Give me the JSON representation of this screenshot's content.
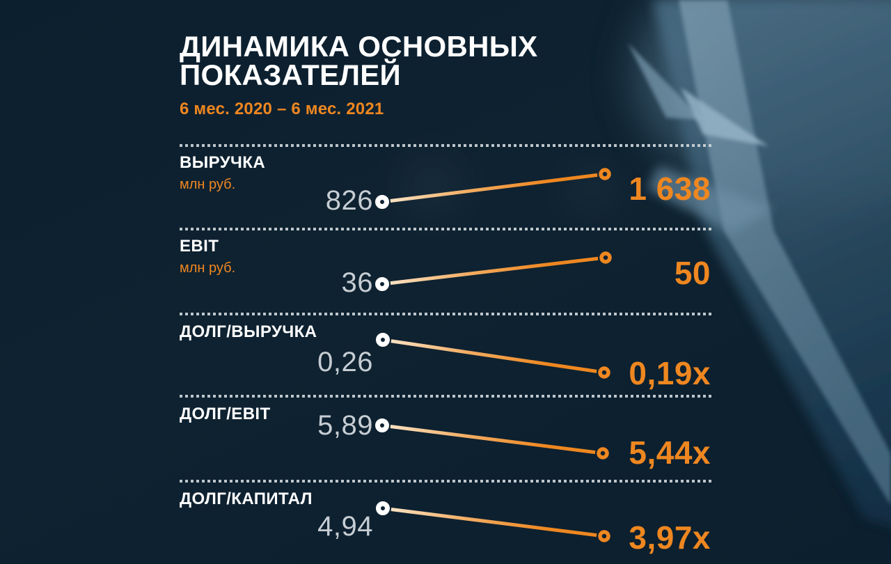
{
  "header": {
    "title": "ДИНАМИКА ОСНОВНЫХ ПОКАЗАТЕЛЕЙ",
    "subtitle": "6 мес. 2020 – 6 мес. 2021"
  },
  "metrics": [
    {
      "label": "ВЫРУЧКА",
      "unit": "млн руб.",
      "start_value": "826",
      "end_value": "1 638",
      "trend": "up"
    },
    {
      "label": "EBIT",
      "unit": "млн руб.",
      "start_value": "36",
      "end_value": "50",
      "trend": "up"
    },
    {
      "label": "ДОЛГ/ВЫРУЧКА",
      "unit": "",
      "start_value": "0,26",
      "end_value": "0,19x",
      "trend": "down"
    },
    {
      "label": "ДОЛГ/EBIT",
      "unit": "",
      "start_value": "5,89",
      "end_value": "5,44x",
      "trend": "down"
    },
    {
      "label": "ДОЛГ/КАПИТАЛ",
      "unit": "",
      "start_value": "4,94",
      "end_value": "3,97x",
      "trend": "down"
    }
  ],
  "colors": {
    "accent_orange": "#ef8720",
    "value_gray": "#c6cdd3",
    "text_white": "#ffffff",
    "background_navy": "#0e2231",
    "separator_dots": "#cdd5da"
  },
  "chart_data": {
    "type": "line",
    "subtype": "slopegraph",
    "title": "ДИНАМИКА ОСНОВНЫХ ПОКАЗАТЕЛЕЙ",
    "subtitle": "6 мес. 2020 – 6 мес. 2021",
    "x": [
      "6 мес. 2020",
      "6 мес. 2021"
    ],
    "series": [
      {
        "name": "ВЫРУЧКА",
        "unit": "млн руб.",
        "values": [
          826,
          1638
        ]
      },
      {
        "name": "EBIT",
        "unit": "млн руб.",
        "values": [
          36,
          50
        ]
      },
      {
        "name": "ДОЛГ/ВЫРУЧКА",
        "unit": "x",
        "values": [
          0.26,
          0.19
        ]
      },
      {
        "name": "ДОЛГ/EBIT",
        "unit": "x",
        "values": [
          5.89,
          5.44
        ]
      },
      {
        "name": "ДОЛГ/КАПИТАЛ",
        "unit": "x",
        "values": [
          4.94,
          3.97
        ]
      }
    ],
    "legend": false,
    "grid": false,
    "marker_start_color": "#ffffff",
    "marker_end_color": "#ef8720"
  }
}
